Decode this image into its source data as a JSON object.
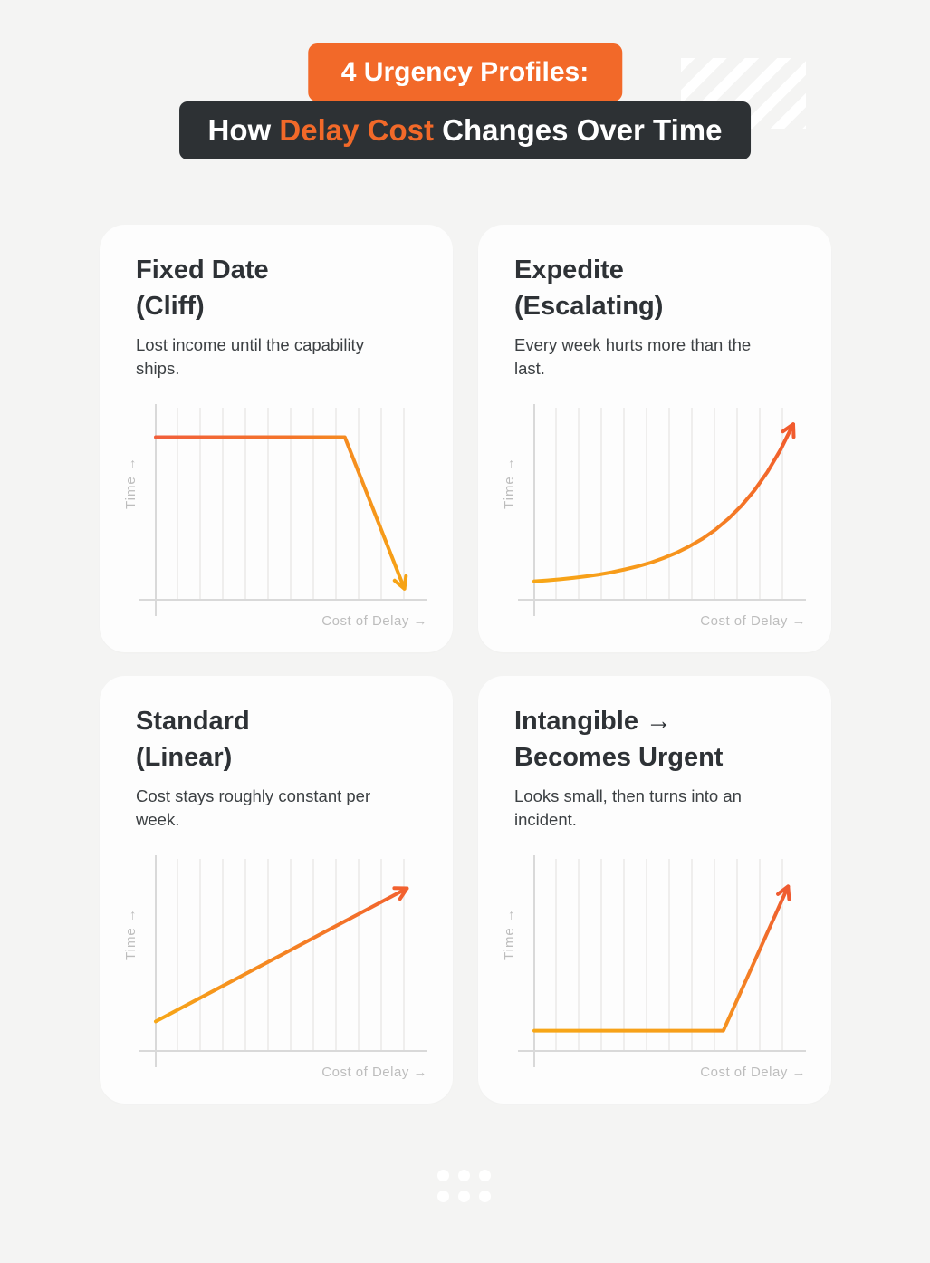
{
  "colors": {
    "background": "#f4f4f3",
    "card_bg": "#fdfdfd",
    "accent_orange": "#f26929",
    "dark_charcoal": "#2d3134",
    "title_text": "#2e3236",
    "body_text": "#3c4043",
    "axis_gray": "#d9d9d9",
    "axis_label_gray": "#bdbdbd",
    "grid_gray": "#efeeed"
  },
  "header": {
    "badge_label": "4 Urgency Profiles:",
    "title_prefix": "How",
    "title_highlight": "Delay Cost",
    "title_suffix": "Changes Over Time"
  },
  "cards": [
    {
      "title_line1": "Fixed Date",
      "title_line2": "(Cliff)",
      "description": "Lost income until the capability ships.",
      "y_axis_label": "Time →",
      "x_axis_label": "Cost of Delay →"
    },
    {
      "title_line1": "Expedite",
      "title_line2": "(Escalating)",
      "description": "Every week hurts more than the last.",
      "y_axis_label": "Time →",
      "x_axis_label": "Cost of Delay →"
    },
    {
      "title_line1": "Standard",
      "title_line2": "(Linear)",
      "description": "Cost stays roughly constant per week.",
      "y_axis_label": "Time →",
      "x_axis_label": "Cost of Delay →"
    },
    {
      "title_line1": "Intangible →",
      "title_line2": "Becomes Urgent",
      "description": "Looks small, then turns into an incident.",
      "y_axis_label": "Time →",
      "x_axis_label": "Cost of Delay →"
    }
  ],
  "chart_data": [
    {
      "type": "line",
      "title": "Fixed Date (Cliff)",
      "xlabel": "Cost of Delay",
      "ylabel": "Time",
      "x_range": [
        0,
        100
      ],
      "y_range": [
        0,
        100
      ],
      "grid": "vertical",
      "legend": false,
      "points": [
        [
          0,
          88
        ],
        [
          73,
          88
        ],
        [
          96,
          6
        ]
      ],
      "gradient_stops": [
        [
          0,
          "#f15f3b"
        ],
        [
          0.55,
          "#f4752a"
        ],
        [
          1,
          "#f6a315"
        ]
      ],
      "arrow_end": true,
      "shape_note": "flat high line, then sharp cliff drop with down-right arrow"
    },
    {
      "type": "line",
      "title": "Expedite (Escalating)",
      "xlabel": "Cost of Delay",
      "ylabel": "Time",
      "x_range": [
        0,
        100
      ],
      "y_range": [
        0,
        100
      ],
      "grid": "vertical",
      "legend": false,
      "points": [
        [
          0,
          10
        ],
        [
          5,
          10.5
        ],
        [
          10,
          11.1
        ],
        [
          15,
          11.8
        ],
        [
          20,
          12.7
        ],
        [
          25,
          13.7
        ],
        [
          30,
          14.9
        ],
        [
          35,
          16.4
        ],
        [
          40,
          18.1
        ],
        [
          45,
          20.1
        ],
        [
          50,
          22.6
        ],
        [
          55,
          25.5
        ],
        [
          60,
          29
        ],
        [
          65,
          33.1
        ],
        [
          70,
          38
        ],
        [
          75,
          43.9
        ],
        [
          80,
          50.9
        ],
        [
          85,
          59.2
        ],
        [
          90,
          69.1
        ],
        [
          95,
          81
        ],
        [
          100,
          95
        ]
      ],
      "gradient_stops": [
        [
          0,
          "#f7a717"
        ],
        [
          0.55,
          "#f7941d"
        ],
        [
          1,
          "#f15b2e"
        ]
      ],
      "arrow_end": true,
      "shape_note": "exponential rise ending in up-right arrow"
    },
    {
      "type": "line",
      "title": "Standard (Linear)",
      "xlabel": "Cost of Delay",
      "ylabel": "Time",
      "x_range": [
        0,
        100
      ],
      "y_range": [
        0,
        100
      ],
      "grid": "vertical",
      "legend": false,
      "points": [
        [
          0,
          16
        ],
        [
          97,
          88
        ]
      ],
      "gradient_stops": [
        [
          0,
          "#f7a717"
        ],
        [
          1,
          "#f2612f"
        ]
      ],
      "arrow_end": true,
      "shape_note": "straight diagonal line with up-right arrow"
    },
    {
      "type": "line",
      "title": "Intangible → Becomes Urgent",
      "xlabel": "Cost of Delay",
      "ylabel": "Time",
      "x_range": [
        0,
        100
      ],
      "y_range": [
        0,
        100
      ],
      "grid": "vertical",
      "legend": false,
      "points": [
        [
          0,
          11
        ],
        [
          73,
          11
        ],
        [
          98,
          89
        ]
      ],
      "gradient_stops": [
        [
          0,
          "#f7a717"
        ],
        [
          0.7,
          "#f79d1b"
        ],
        [
          1,
          "#ef5b31"
        ]
      ],
      "arrow_end": true,
      "shape_note": "flat low line, then sudden steep spike with up-right arrow"
    }
  ]
}
